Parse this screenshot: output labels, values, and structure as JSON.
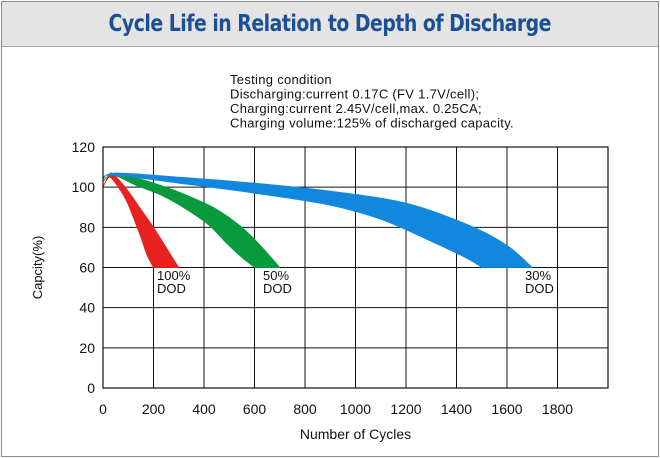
{
  "chart_data": {
    "type": "area",
    "title": "Cycle Life in Relation to Depth of Discharge",
    "xlabel": "Number of Cycles",
    "ylabel": "Capcity(%)",
    "xlim": [
      0,
      2000
    ],
    "ylim": [
      0,
      120
    ],
    "xticks": [
      "0",
      "200",
      "400",
      "600",
      "800",
      "1000",
      "1200",
      "1400",
      "1600",
      "1800"
    ],
    "yticks": [
      "0",
      "20",
      "40",
      "60",
      "80",
      "100",
      "120"
    ],
    "grid": true,
    "testing_condition": [
      "Testing condition",
      "Discharging:current 0.17C (FV 1.7V/cell);",
      "Charging:current 2.45V/cell,max. 0.25CA;",
      "Charging volume:125% of discharged capacity."
    ],
    "series": [
      {
        "name": "100% DOD",
        "label_lines": [
          "100%",
          "DOD"
        ],
        "color": "#e8231f",
        "upper": [
          [
            0,
            100
          ],
          [
            30,
            107
          ],
          [
            60,
            104
          ],
          [
            100,
            98
          ],
          [
            150,
            89
          ],
          [
            200,
            80
          ],
          [
            250,
            70
          ],
          [
            300,
            60
          ]
        ],
        "lower": [
          [
            0,
            100
          ],
          [
            25,
            105
          ],
          [
            55,
            101
          ],
          [
            90,
            94
          ],
          [
            120,
            85
          ],
          [
            150,
            75
          ],
          [
            175,
            66
          ],
          [
            200,
            60
          ]
        ]
      },
      {
        "name": "50% DOD",
        "label_lines": [
          "50%",
          "DOD"
        ],
        "color": "#0a9a3e",
        "upper": [
          [
            0,
            103
          ],
          [
            50,
            107
          ],
          [
            150,
            104
          ],
          [
            250,
            100
          ],
          [
            350,
            95
          ],
          [
            450,
            89
          ],
          [
            550,
            80
          ],
          [
            630,
            70
          ],
          [
            700,
            60
          ]
        ],
        "lower": [
          [
            0,
            103
          ],
          [
            40,
            106
          ],
          [
            130,
            101
          ],
          [
            230,
            96
          ],
          [
            330,
            89
          ],
          [
            420,
            81
          ],
          [
            490,
            72
          ],
          [
            550,
            65
          ],
          [
            600,
            60
          ]
        ]
      },
      {
        "name": "30% DOD",
        "label_lines": [
          "30%",
          "DOD"
        ],
        "color": "#1188dd",
        "upper": [
          [
            0,
            104
          ],
          [
            50,
            107
          ],
          [
            300,
            105
          ],
          [
            600,
            102
          ],
          [
            900,
            98
          ],
          [
            1200,
            92
          ],
          [
            1450,
            81
          ],
          [
            1600,
            71
          ],
          [
            1700,
            60
          ]
        ],
        "lower": [
          [
            0,
            104
          ],
          [
            40,
            106
          ],
          [
            300,
            102
          ],
          [
            600,
            97
          ],
          [
            900,
            91
          ],
          [
            1100,
            84
          ],
          [
            1300,
            73
          ],
          [
            1450,
            64
          ],
          [
            1500,
            60
          ]
        ]
      }
    ]
  }
}
